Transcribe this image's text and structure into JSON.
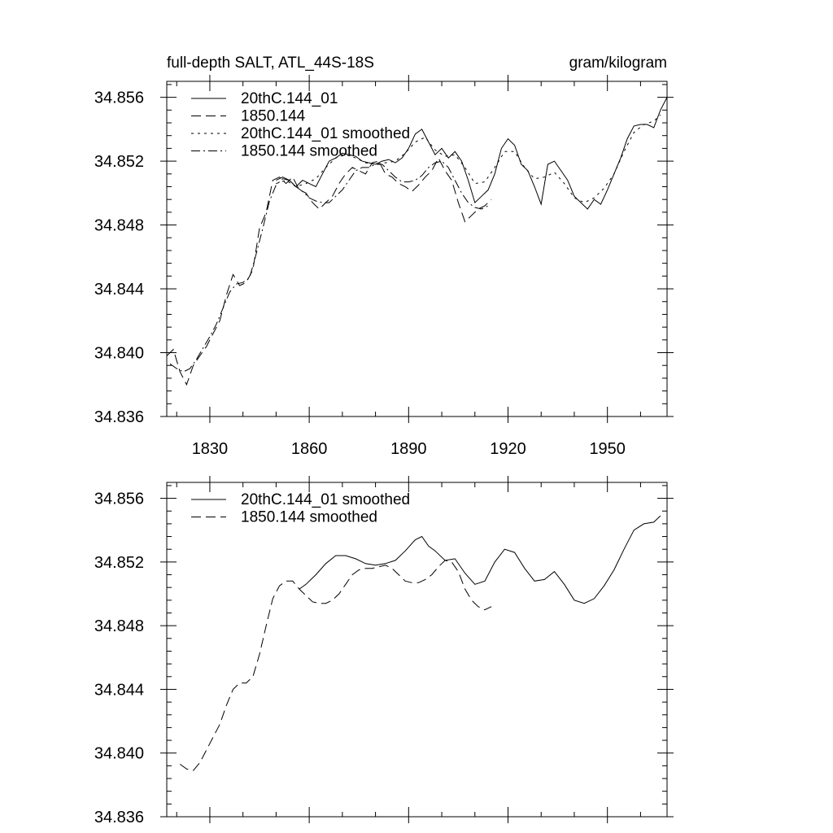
{
  "chart_data": [
    {
      "type": "line",
      "title": "full-depth SALT, ATL_44S-18S",
      "units": "gram/kilogram",
      "xlim": [
        1817,
        1968
      ],
      "ylim": [
        34.836,
        34.857
      ],
      "x_ticks": [
        1830,
        1860,
        1890,
        1920,
        1950
      ],
      "x_tick_labels": [
        "1830",
        "1860",
        "1890",
        "1920",
        "1950"
      ],
      "y_ticks": [
        34.836,
        34.84,
        34.844,
        34.848,
        34.852,
        34.856
      ],
      "y_tick_labels": [
        "34.836",
        "34.840",
        "34.844",
        "34.848",
        "34.852",
        "34.856"
      ],
      "legend_position": "top-left",
      "series": [
        {
          "name": "20thC.144_01",
          "dash": "solid",
          "x": [
            1850,
            1852,
            1854,
            1856,
            1858,
            1860,
            1862,
            1864,
            1866,
            1868,
            1870,
            1872,
            1874,
            1876,
            1878,
            1880,
            1882,
            1884,
            1886,
            1888,
            1890,
            1892,
            1894,
            1896,
            1898,
            1900,
            1902,
            1904,
            1906,
            1908,
            1910,
            1912,
            1914,
            1916,
            1918,
            1920,
            1922,
            1924,
            1926,
            1928,
            1930,
            1932,
            1934,
            1936,
            1938,
            1940,
            1942,
            1944,
            1946,
            1948,
            1950,
            1952,
            1954,
            1956,
            1958,
            1960,
            1962,
            1964,
            1966,
            1968
          ],
          "y": [
            34.8508,
            34.851,
            34.8508,
            34.8504,
            34.8508,
            34.8506,
            34.8504,
            34.8512,
            34.852,
            34.8522,
            34.8525,
            34.8524,
            34.8523,
            34.852,
            34.8519,
            34.8518,
            34.852,
            34.8521,
            34.8519,
            34.8522,
            34.8528,
            34.8537,
            34.854,
            34.8532,
            34.8524,
            34.8528,
            34.8522,
            34.8526,
            34.852,
            34.8508,
            34.8494,
            34.8498,
            34.8502,
            34.8512,
            34.8528,
            34.8534,
            34.853,
            34.8518,
            34.8514,
            34.8504,
            34.8493,
            34.8518,
            34.852,
            34.8514,
            34.8508,
            34.8498,
            34.8494,
            34.849,
            34.8496,
            34.8493,
            34.8502,
            34.8512,
            34.8522,
            34.8534,
            34.8542,
            34.8543,
            34.8543,
            34.8541,
            34.8552,
            34.856
          ]
        },
        {
          "name": "1850.144",
          "dash": "long-dash",
          "x": [
            1817,
            1819,
            1821,
            1823,
            1825,
            1827,
            1829,
            1831,
            1833,
            1835,
            1837,
            1839,
            1841,
            1843,
            1845,
            1847,
            1849,
            1851,
            1853,
            1855,
            1857,
            1859,
            1861,
            1863,
            1865,
            1867,
            1869,
            1871,
            1873,
            1875,
            1877,
            1879,
            1881,
            1883,
            1885,
            1887,
            1889,
            1891,
            1893,
            1895,
            1897,
            1899,
            1901,
            1903,
            1905,
            1907,
            1909,
            1911,
            1913,
            1915
          ],
          "y": [
            34.8398,
            34.8402,
            34.8388,
            34.838,
            34.8392,
            34.8398,
            34.8404,
            34.8412,
            34.842,
            34.8436,
            34.8449,
            34.8442,
            34.8444,
            34.8452,
            34.8478,
            34.8488,
            34.8508,
            34.851,
            34.8506,
            34.851,
            34.8502,
            34.85,
            34.8494,
            34.849,
            34.8494,
            34.8498,
            34.8506,
            34.8512,
            34.8516,
            34.8514,
            34.8512,
            34.8519,
            34.852,
            34.8512,
            34.851,
            34.8506,
            34.8504,
            34.8501,
            34.8505,
            34.851,
            34.8514,
            34.8522,
            34.8514,
            34.8508,
            34.8494,
            34.8482,
            34.8486,
            34.849,
            34.8492,
            34.8496
          ]
        },
        {
          "name": "20thC.144_01 smoothed",
          "dash": "short-dash",
          "x": [
            1850,
            1853,
            1856,
            1859,
            1862,
            1865,
            1868,
            1871,
            1874,
            1877,
            1880,
            1883,
            1886,
            1889,
            1892,
            1895,
            1898,
            1901,
            1904,
            1907,
            1910,
            1913,
            1916,
            1919,
            1922,
            1925,
            1928,
            1931,
            1934,
            1937,
            1940,
            1943,
            1946,
            1949,
            1952,
            1955,
            1958,
            1961,
            1964,
            1966
          ],
          "y": [
            34.8506,
            34.8508,
            34.8504,
            34.8506,
            34.8509,
            34.8516,
            34.8522,
            34.8524,
            34.8522,
            34.8519,
            34.8518,
            34.8519,
            34.852,
            34.8525,
            34.8532,
            34.8535,
            34.8527,
            34.8523,
            34.8524,
            34.8516,
            34.8506,
            34.8507,
            34.8516,
            34.8526,
            34.8526,
            34.8516,
            34.8509,
            34.851,
            34.8513,
            34.8506,
            34.8497,
            34.8494,
            34.8497,
            34.8503,
            34.8512,
            34.8526,
            34.8538,
            34.8543,
            34.8545,
            34.8549
          ]
        },
        {
          "name": "1850.144 smoothed",
          "dash": "dash-dot",
          "x": [
            1818,
            1820,
            1822,
            1824,
            1826,
            1828,
            1830,
            1832,
            1834,
            1836,
            1838,
            1840,
            1842,
            1844,
            1846,
            1848,
            1850,
            1852,
            1854,
            1856,
            1858,
            1860,
            1862,
            1864,
            1866,
            1868,
            1870,
            1872,
            1874,
            1876,
            1878,
            1880,
            1882,
            1884,
            1886,
            1888,
            1890,
            1892,
            1894,
            1896,
            1898,
            1900,
            1902,
            1904,
            1906,
            1908,
            1910,
            1912,
            1914
          ],
          "y": [
            34.8393,
            34.839,
            34.8388,
            34.839,
            34.8396,
            34.8403,
            34.841,
            34.8418,
            34.8428,
            34.8438,
            34.8443,
            34.8444,
            34.8447,
            34.8462,
            34.8478,
            34.8495,
            34.8505,
            34.8509,
            34.8508,
            34.8504,
            34.8501,
            34.8497,
            34.8495,
            34.8494,
            34.8494,
            34.8498,
            34.8502,
            34.8508,
            34.8514,
            34.8516,
            34.8516,
            34.8518,
            34.8518,
            34.8514,
            34.851,
            34.8507,
            34.8507,
            34.8508,
            34.8511,
            34.8516,
            34.8519,
            34.852,
            34.8516,
            34.8508,
            34.85,
            34.8494,
            34.8491,
            34.849,
            34.8492
          ]
        }
      ]
    },
    {
      "type": "line",
      "title": "",
      "units": "",
      "xlim": [
        1817,
        1968
      ],
      "ylim": [
        34.836,
        34.857
      ],
      "x_ticks": [
        1830,
        1860,
        1890,
        1920,
        1950
      ],
      "x_tick_labels": [],
      "y_ticks": [
        34.836,
        34.84,
        34.844,
        34.848,
        34.852,
        34.856
      ],
      "y_tick_labels": [
        "34.836",
        "34.840",
        "34.844",
        "34.848",
        "34.852",
        "34.856"
      ],
      "legend_position": "top-left",
      "series": [
        {
          "name": "20thC.144_01 smoothed",
          "dash": "solid",
          "x": [
            1857,
            1859,
            1862,
            1865,
            1868,
            1871,
            1874,
            1877,
            1880,
            1883,
            1886,
            1889,
            1892,
            1894,
            1896,
            1898,
            1901,
            1904,
            1907,
            1910,
            1913,
            1916,
            1919,
            1922,
            1925,
            1928,
            1931,
            1934,
            1937,
            1940,
            1943,
            1946,
            1949,
            1952,
            1955,
            1958,
            1961,
            1964,
            1966
          ],
          "y": [
            34.8503,
            34.8506,
            34.8512,
            34.8519,
            34.8524,
            34.8524,
            34.8522,
            34.8519,
            34.8518,
            34.8519,
            34.8521,
            34.8527,
            34.8534,
            34.8536,
            34.853,
            34.8527,
            34.8521,
            34.8522,
            34.8513,
            34.8506,
            34.8508,
            34.852,
            34.8528,
            34.8526,
            34.8516,
            34.8508,
            34.8509,
            34.8514,
            34.8506,
            34.8496,
            34.8494,
            34.8497,
            34.8505,
            34.8515,
            34.8528,
            34.854,
            34.8544,
            34.8545,
            34.8549
          ]
        },
        {
          "name": "1850.144 smoothed",
          "dash": "long-dash",
          "x": [
            1821,
            1823,
            1825,
            1827,
            1829,
            1831,
            1833,
            1835,
            1837,
            1839,
            1841,
            1843,
            1845,
            1847,
            1849,
            1851,
            1853,
            1855,
            1857,
            1859,
            1861,
            1863,
            1865,
            1867,
            1869,
            1871,
            1873,
            1875,
            1877,
            1879,
            1881,
            1883,
            1885,
            1887,
            1889,
            1891,
            1893,
            1895,
            1897,
            1899,
            1901,
            1903,
            1905,
            1907,
            1909,
            1911,
            1913,
            1915
          ],
          "y": [
            34.8393,
            34.839,
            34.8389,
            34.8394,
            34.8402,
            34.841,
            34.8418,
            34.843,
            34.844,
            34.8444,
            34.8444,
            34.8448,
            34.8462,
            34.848,
            34.8497,
            34.8505,
            34.8508,
            34.8508,
            34.8503,
            34.8499,
            34.8495,
            34.8494,
            34.8494,
            34.8496,
            34.85,
            34.8506,
            34.8512,
            34.8515,
            34.8516,
            34.8516,
            34.8517,
            34.8518,
            34.8516,
            34.8512,
            34.8508,
            34.8507,
            34.8507,
            34.8509,
            34.8512,
            34.8517,
            34.8521,
            34.852,
            34.8514,
            34.8503,
            34.8496,
            34.8492,
            34.849,
            34.8492
          ]
        }
      ]
    }
  ]
}
